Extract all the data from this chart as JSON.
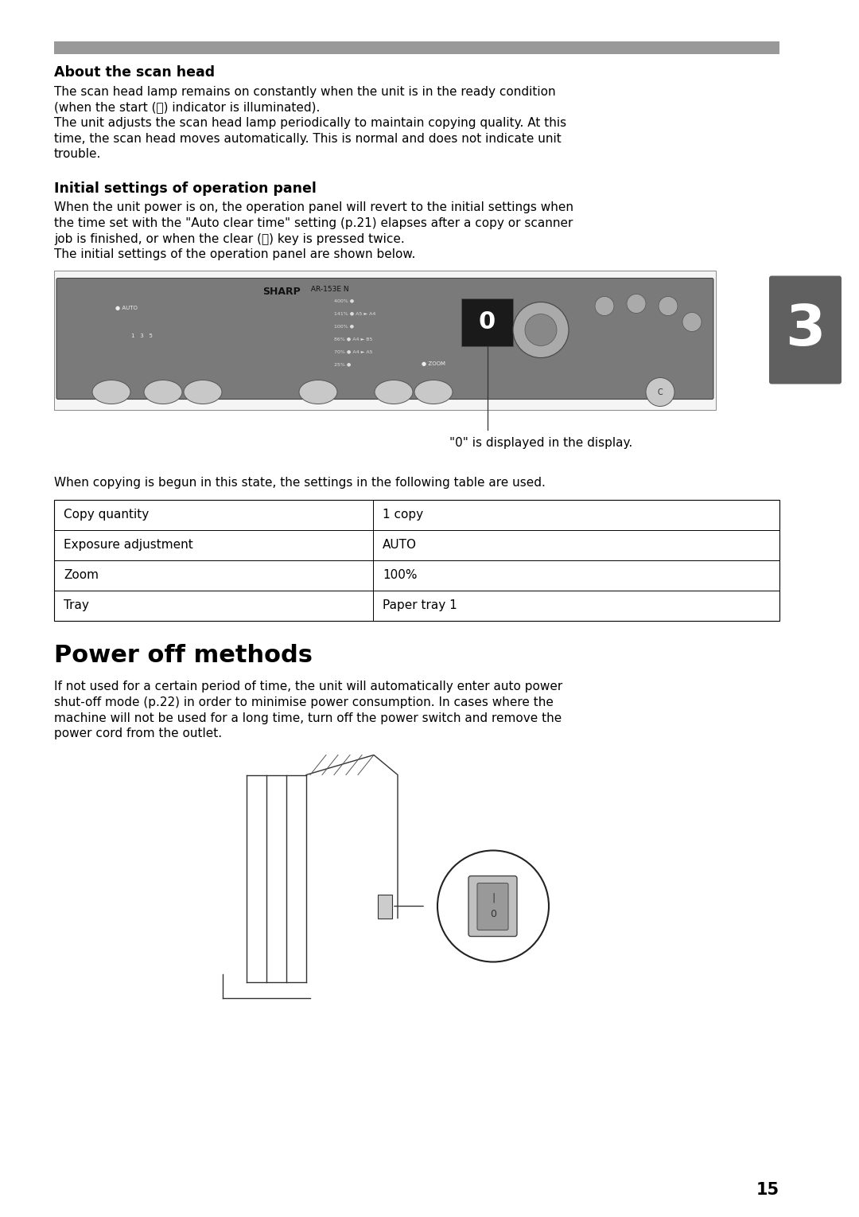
{
  "page_bg": "#ffffff",
  "top_bar_color": "#999999",
  "section1_title": "About the scan head",
  "section1_body_line1": "The scan head lamp remains on constantly when the unit is in the ready condition",
  "section1_body_line2": "(when the start (ⓢ) indicator is illuminated).",
  "section1_body_line3": "The unit adjusts the scan head lamp periodically to maintain copying quality. At this",
  "section1_body_line4": "time, the scan head moves automatically. This is normal and does not indicate unit",
  "section1_body_line5": "trouble.",
  "section2_title": "Initial settings of operation panel",
  "section2_body_line1": "When the unit power is on, the operation panel will revert to the initial settings when",
  "section2_body_line2": "the time set with the \"Auto clear time\" setting (p.21) elapses after a copy or scanner",
  "section2_body_line3": "job is finished, or when the clear (Ⓒ) key is pressed twice.",
  "section2_body_line4": "The initial settings of the operation panel are shown below.",
  "caption": "\"0\" is displayed in the display.",
  "table_intro": "When copying is begun in this state, the settings in the following table are used.",
  "table_rows": [
    [
      "Copy quantity",
      "1 copy"
    ],
    [
      "Exposure adjustment",
      "AUTO"
    ],
    [
      "Zoom",
      "100%"
    ],
    [
      "Tray",
      "Paper tray 1"
    ]
  ],
  "section3_title": "Power off methods",
  "section3_body_line1": "If not used for a certain period of time, the unit will automatically enter auto power",
  "section3_body_line2": "shut-off mode (p.22) in order to minimise power consumption. In cases where the",
  "section3_body_line3": "machine will not be used for a long time, turn off the power switch and remove the",
  "section3_body_line4": "power cord from the outlet.",
  "tab_number": "3",
  "page_number": "15",
  "tab_color": "#606060",
  "text_color": "#000000",
  "body_fontsize": 11.0,
  "title1_fontsize": 12.5,
  "title3_fontsize": 22,
  "panel_bg_color": "#7a7a7a",
  "table_border_color": "#000000",
  "sharp_logo_color": "#111111"
}
